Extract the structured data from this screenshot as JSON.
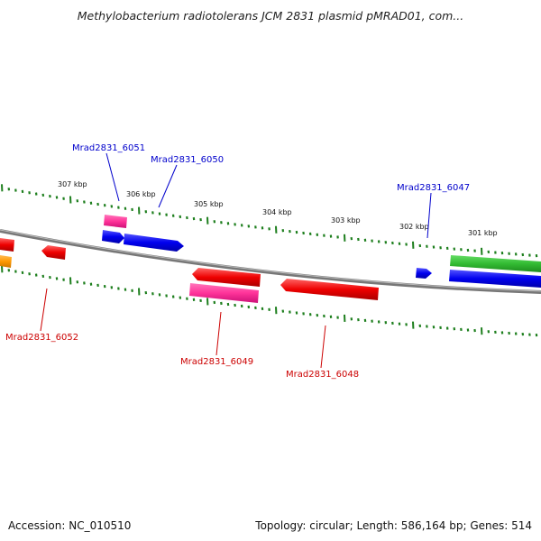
{
  "title": "Methylobacterium radiotolerans JCM 2831 plasmid pMRAD01, com...",
  "footer": {
    "accession": "Accession: NC_010510",
    "stats": "Topology: circular; Length: 586,164 bp; Genes: 514"
  },
  "colors": {
    "backbone": "#8a8a8a",
    "tick": "#1e7f1e",
    "label_forward": "#0000cc",
    "label_reverse": "#cc0000",
    "blue": "#0000ee",
    "pink": "#ff3399",
    "red": "#ee0000",
    "green": "#33bb33",
    "orange": "#ff9900"
  },
  "ruler": {
    "unit": "kbp",
    "labels": [
      "307 kbp",
      "306 kbp",
      "305 kbp",
      "304 kbp",
      "303 kbp",
      "302 kbp",
      "301 kbp"
    ]
  },
  "gene_labels": [
    {
      "id": "Mrad2831_6051",
      "strand": "forward"
    },
    {
      "id": "Mrad2831_6050",
      "strand": "forward"
    },
    {
      "id": "Mrad2831_6047",
      "strand": "forward"
    },
    {
      "id": "Mrad2831_6052",
      "strand": "reverse"
    },
    {
      "id": "Mrad2831_6049",
      "strand": "reverse"
    },
    {
      "id": "Mrad2831_6048",
      "strand": "reverse"
    }
  ]
}
